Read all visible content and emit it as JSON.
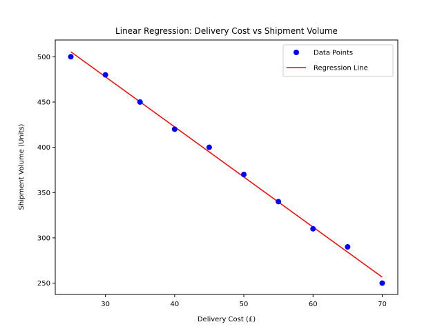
{
  "chart_data": {
    "type": "scatter",
    "title": "Linear Regression: Delivery Cost vs Shipment Volume",
    "xlabel": "Delivery Cost (£)",
    "ylabel": "Shipment Volume (Units)",
    "xlim": [
      22.75,
      72.25
    ],
    "ylim": [
      237.5,
      518.5
    ],
    "xticks": [
      30,
      40,
      50,
      60,
      70
    ],
    "yticks": [
      250,
      300,
      350,
      400,
      450,
      500
    ],
    "grid": false,
    "legend_position": "top-right",
    "series": [
      {
        "name": "Data Points",
        "kind": "scatter",
        "color": "#0000ff",
        "x": [
          25,
          30,
          35,
          40,
          45,
          50,
          55,
          60,
          65,
          70
        ],
        "y": [
          500,
          480,
          450,
          420,
          400,
          370,
          340,
          310,
          290,
          250
        ]
      },
      {
        "name": "Regression Line",
        "kind": "line",
        "color": "#ff0000",
        "x": [
          25,
          70
        ],
        "y": [
          505.5,
          256.6
        ]
      }
    ]
  }
}
